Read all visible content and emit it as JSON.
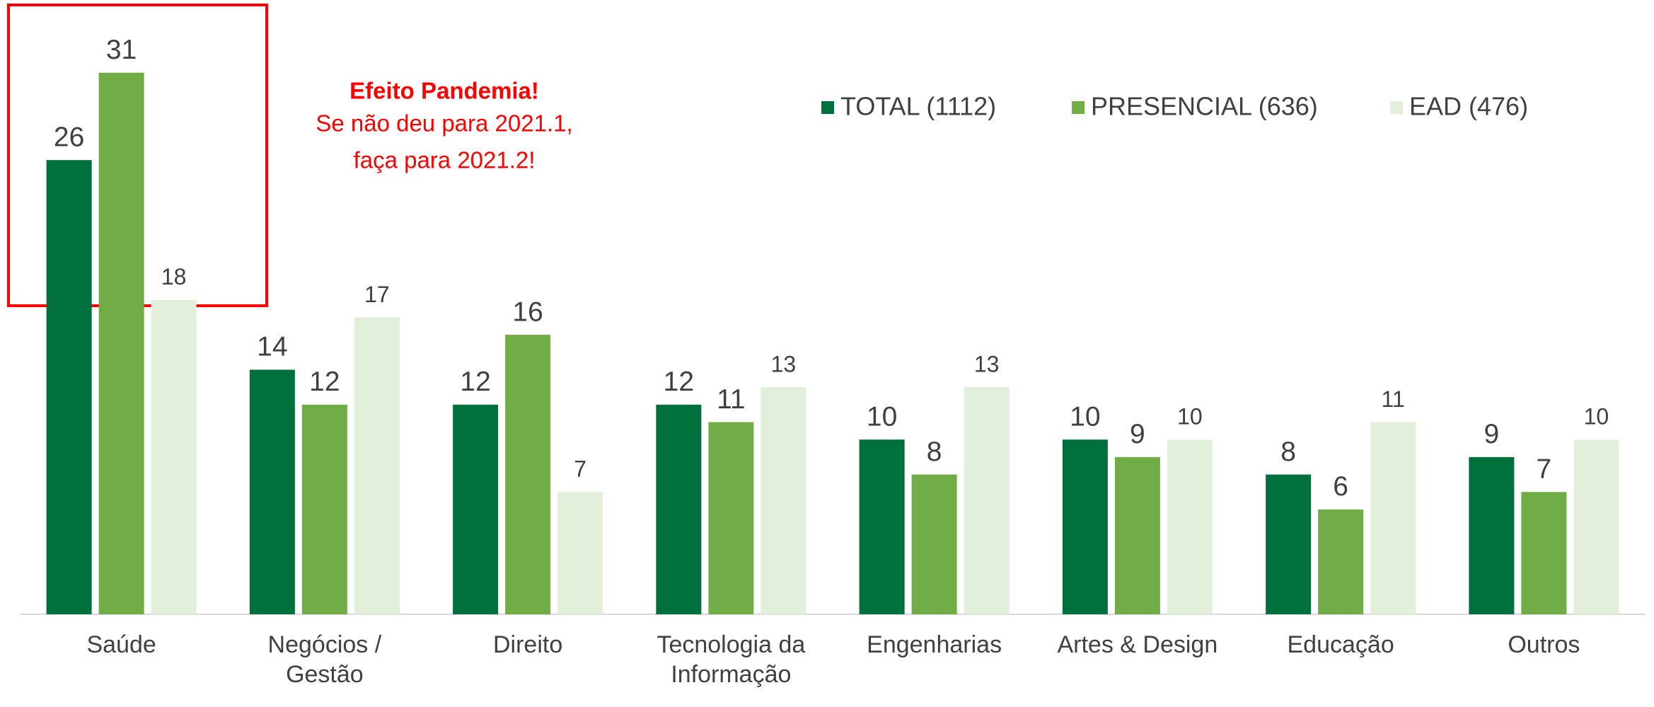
{
  "chart_data": {
    "type": "bar",
    "categories": [
      "Saúde",
      "Negócios /\nGestão",
      "Direito",
      "Tecnologia da\nInformação",
      "Engenharias",
      "Artes & Design",
      "Educação",
      "Outros"
    ],
    "series": [
      {
        "name": "TOTAL (1112)",
        "color": "#00703c",
        "values": [
          26,
          14,
          12,
          12,
          10,
          10,
          8,
          9
        ]
      },
      {
        "name": "PRESENCIAL (636)",
        "color": "#70ad47",
        "values": [
          31,
          12,
          16,
          11,
          8,
          9,
          6,
          7
        ]
      },
      {
        "name": "EAD (476)",
        "color": "#e2efda",
        "values": [
          18,
          17,
          7,
          13,
          13,
          10,
          11,
          10
        ]
      }
    ],
    "ylim": [
      0,
      35
    ],
    "legend": "top-right",
    "annotation": {
      "title": "Efeito Pandemia!",
      "lines": [
        "Se não deu para 2021.1,",
        "faça para 2021.2!"
      ],
      "color": "#ff0000"
    }
  }
}
